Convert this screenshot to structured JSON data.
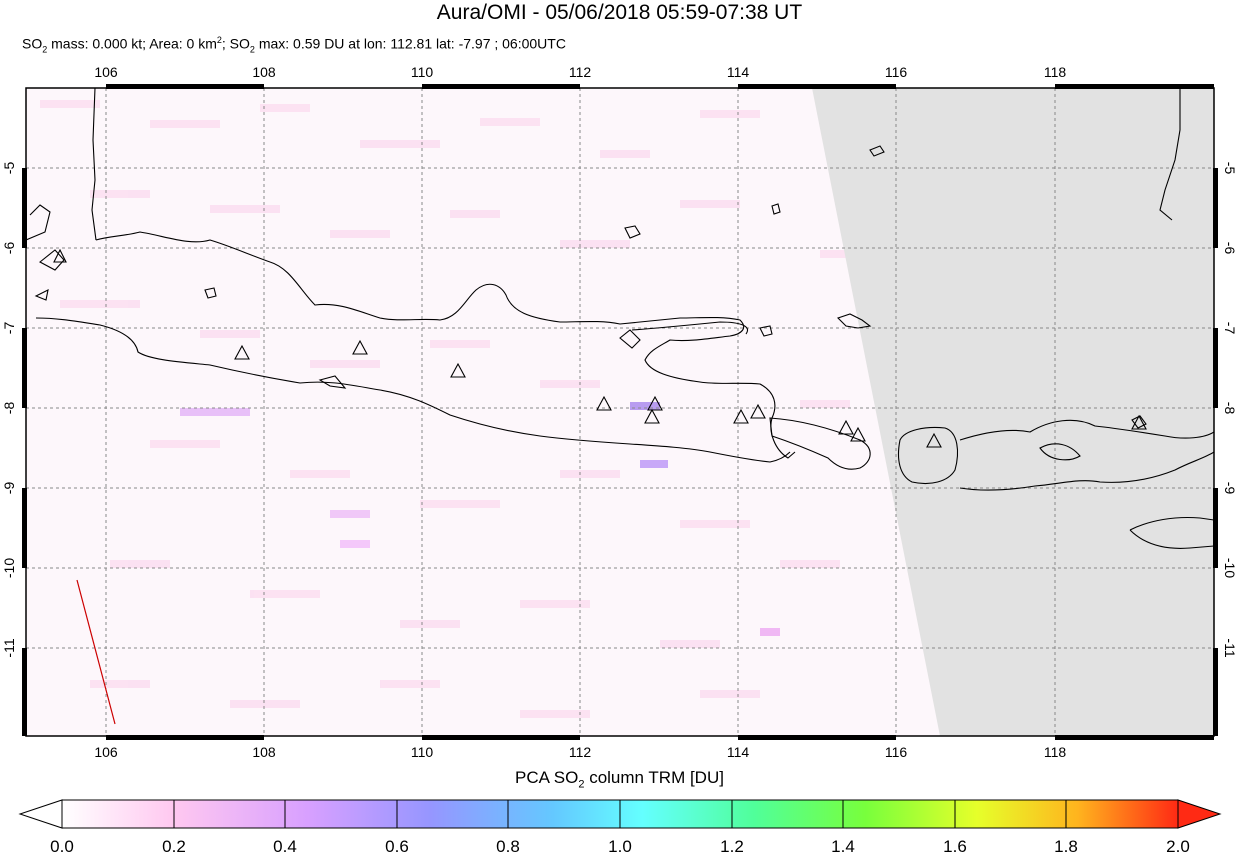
{
  "title": "Aura/OMI - 05/06/2018 05:59-07:38 UT",
  "subtitle": {
    "p1": "SO",
    "s1": "2",
    "p2": " mass: 0.000 kt; Area: 0 km",
    "sup": "2",
    "p3": "; SO",
    "s2": "2",
    "p4": " max: 0.59 DU at lon: 112.81 lat: -7.97 ; 06:00UTC"
  },
  "map": {
    "lon_ticks": [
      "106",
      "108",
      "110",
      "112",
      "114",
      "116",
      "118"
    ],
    "lat_ticks": [
      "-5",
      "-6",
      "-7",
      "-8",
      "-9",
      "-10",
      "-11"
    ],
    "no_data_color": "#e2e2e2",
    "coast_color": "#000000",
    "orbit_track_color": "#cc0000"
  },
  "colorbar": {
    "title_pre": "PCA SO",
    "title_sub": "2",
    "title_post": " column TRM [DU]",
    "tick_labels": [
      "0.0",
      "0.2",
      "0.4",
      "0.6",
      "0.8",
      "1.0",
      "1.2",
      "1.4",
      "1.6",
      "1.8",
      "2.0"
    ],
    "range": [
      0.0,
      2.0
    ],
    "colors": [
      "#ffffff",
      "#ffc8f0",
      "#d8a0ff",
      "#9696ff",
      "#64c8ff",
      "#64ffff",
      "#50ff9a",
      "#78ff3c",
      "#e6ff2a",
      "#ffb41e",
      "#ff2a14"
    ]
  }
}
